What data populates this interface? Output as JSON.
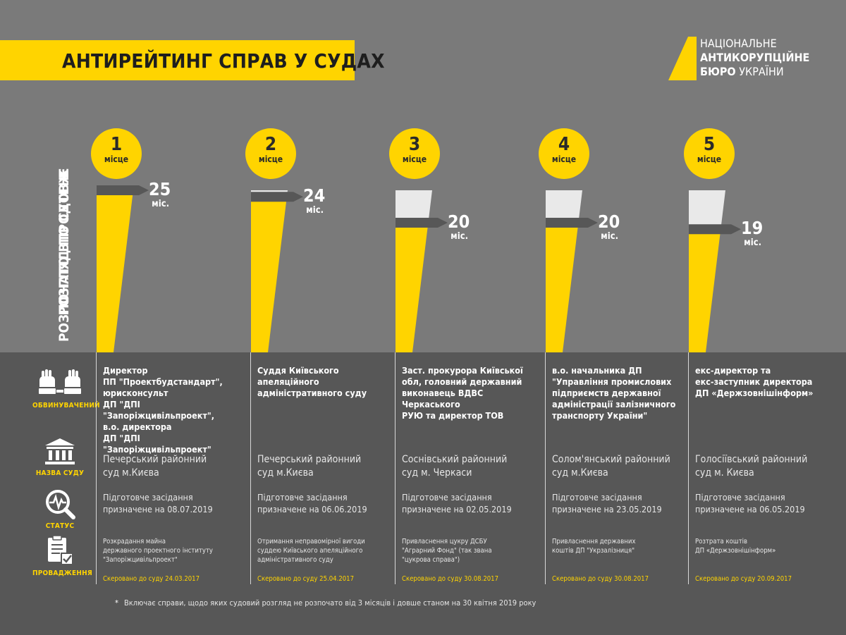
{
  "title": "АНТИРЕЙТИНГ СПРАВ У СУДАХ",
  "logo": {
    "line1": "НАЦІОНАЛЬНЕ",
    "line2": "АНТИКОРУПЦІЙНЕ",
    "line3_bold": "БЮРО",
    "line3_regular": "УКРАЇНИ"
  },
  "side_label": [
    "РОЗГЛЯД ПО СУТІ НЕ",
    "РОЗПОЧАТО ВПРОДОВЖ"
  ],
  "legend": {
    "accused": "ОБВИНУВАЧЕНИЙ",
    "court": "НАЗВА СУДУ",
    "status": "СТАТУС",
    "proceedings": "ПРОВАДЖЕННЯ"
  },
  "colors": {
    "accent": "#ffd400",
    "background_top": "#7a7a7a",
    "background_bottom": "#575757",
    "bar_empty": "#e9e9e9",
    "marker": "#575757"
  },
  "chart_data": {
    "type": "bar",
    "categories": [
      "1",
      "2",
      "3",
      "4",
      "5"
    ],
    "rank_label": "місце",
    "values": [
      25,
      24,
      20,
      20,
      19
    ],
    "value_unit": "міс.",
    "ylim": [
      0,
      25
    ]
  },
  "cases": [
    {
      "accused": "Директор\nПП \"Проектбудстандарт\",\nюрисконсульт\nДП \"ДПІ \"Запоріжцивільпроект\",\nв.о. директора\nДП \"ДПІ \"Запоріжцивільпроект\"",
      "court": "Печерський районний\nсуд м.Києва",
      "status": "Підготовче засідання\nпризначене на 08.07.2019",
      "proceeding": "Розкрадання майна\nдержавного проектного інституту\n\"Запоріжцивільпроект\"",
      "sent": "Скеровано до суду 24.03.2017"
    },
    {
      "accused": "Суддя Київського\nапеляційного\nадміністративного суду",
      "court": "Печерський районний\nсуд м.Києва",
      "status": "Підготовче засідання\nпризначене на 06.06.2019",
      "proceeding": "Отримання неправомірної вигоди\nсуддею Київського апеляційного\nадміністративного суду",
      "sent": "Скеровано до суду 25.04.2017"
    },
    {
      "accused": "Заст. прокурора Київської\nобл, головний державний\nвиконавець ВДВС Черкаського\nРУЮ та директор ТОВ",
      "court": "Соснівський районний\nсуд м. Черкаси",
      "status": "Підготовче засідання\nпризначене на 02.05.2019",
      "proceeding": "Привласнення цукру ДСБУ\n\"Аграрний Фонд\" (так звана\n\"цукрова справа\")",
      "sent": "Скеровано до суду 30.08.2017"
    },
    {
      "accused": "в.о. начальника ДП\n\"Управління промислових\nпідприємств державної\nадміністрації залізничного\nтранспорту України\"",
      "court": "Солом'янський районний\nсуд м.Києва",
      "status": "Підготовче засідання\nпризначене на 23.05.2019",
      "proceeding": "Привласнення державних\nкоштів ДП \"Укрзалізниця\"",
      "sent": "Скеровано до суду 30.08.2017"
    },
    {
      "accused": "екс-директор та\nекс-заступник директора\nДП «Держзовнішінформ»",
      "court": "Голосіївський районний\nсуд м. Києва",
      "status": "Підготовче засідання\nпризначене на 06.05.2019",
      "proceeding": "Розтрата коштів\nДП «Держзовнішінформ»",
      "sent": "Скеровано до суду 20.09.2017"
    }
  ],
  "footnote_mark": "*",
  "footnote": "Включає справи, щодо яких судовий розгляд не розпочато від 3 місяців і довше станом на 30 квітня 2019 року"
}
